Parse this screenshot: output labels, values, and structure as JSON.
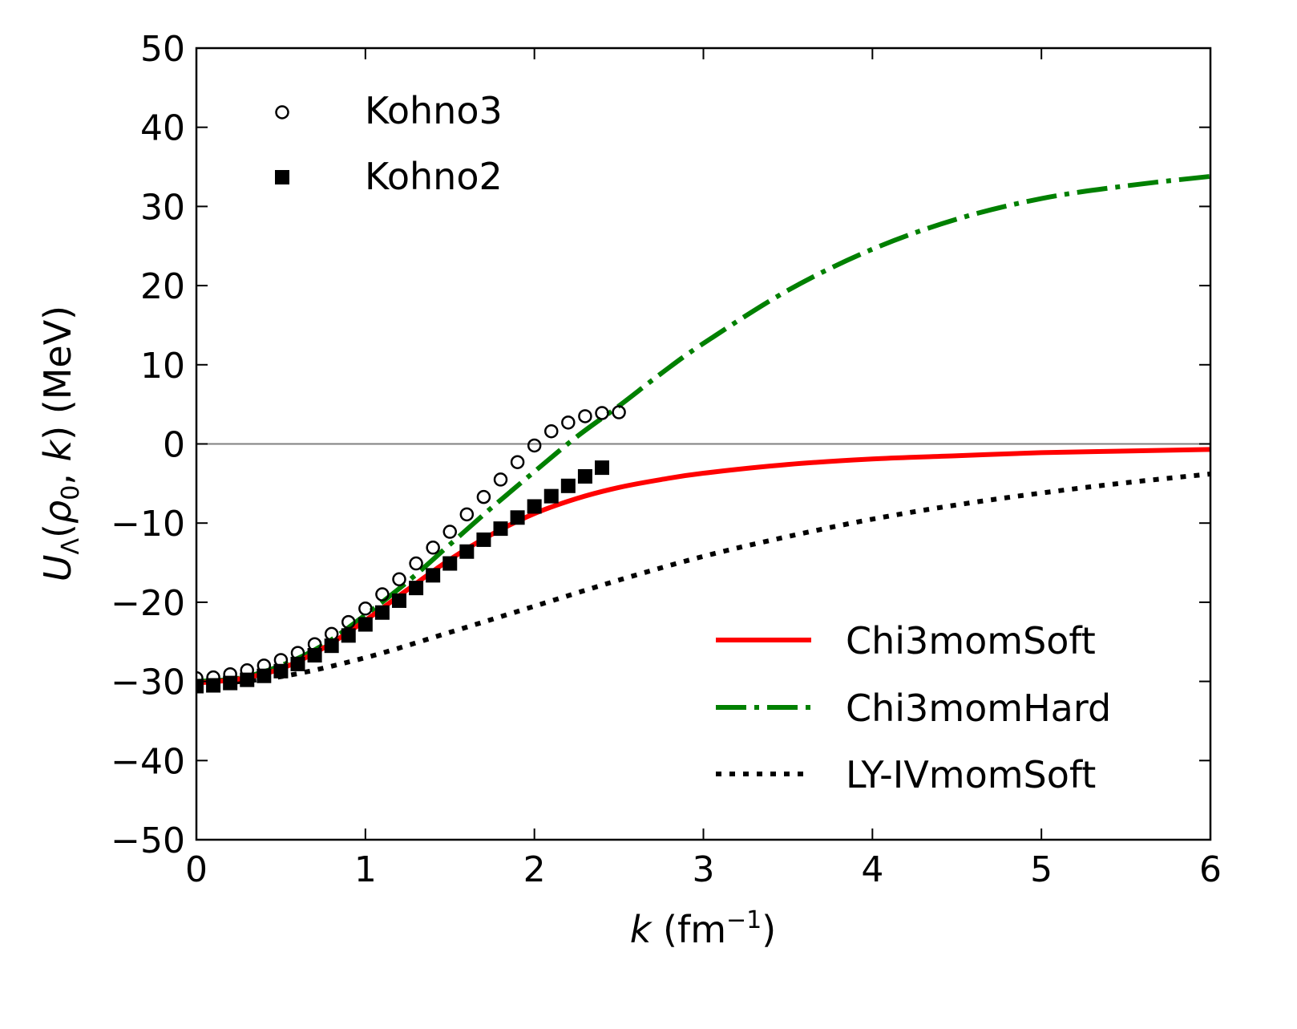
{
  "chart_data": {
    "type": "line",
    "title": "",
    "xlabel": {
      "var": "k",
      "text": " (fm",
      "sup": "−1",
      "close": ")"
    },
    "ylabel": {
      "U": "U",
      "sub": "Λ",
      "open": "(",
      "rho": "ρ",
      "rho_sub": "0",
      "sep": ", ",
      "k": "k",
      "close": ")",
      "unit": " (MeV)"
    },
    "xlim": [
      0,
      6
    ],
    "ylim": [
      -50,
      50
    ],
    "xticks": [
      0,
      1,
      2,
      3,
      4,
      5,
      6
    ],
    "yticks": [
      -50,
      -40,
      -30,
      -20,
      -10,
      0,
      10,
      20,
      30,
      40,
      50
    ],
    "xtick_labels": [
      "0",
      "1",
      "2",
      "3",
      "4",
      "5",
      "6"
    ],
    "ytick_labels": [
      "−50",
      "−40",
      "−30",
      "−20",
      "−10",
      "0",
      "10",
      "20",
      "30",
      "40",
      "50"
    ],
    "hline": 0,
    "grid": false,
    "legend_markers_placement": "top-left",
    "legend_lines_placement": "bottom-right",
    "series": [
      {
        "name": "Kohno3",
        "kind": "markers",
        "marker": "circle-open",
        "color": "#000000",
        "x": [
          0.0,
          0.1,
          0.2,
          0.3,
          0.4,
          0.5,
          0.6,
          0.7,
          0.8,
          0.9,
          1.0,
          1.1,
          1.2,
          1.3,
          1.4,
          1.5,
          1.6,
          1.7,
          1.8,
          1.9,
          2.0,
          2.1,
          2.2,
          2.3,
          2.4,
          2.5
        ],
        "y": [
          -29.6,
          -29.5,
          -29.1,
          -28.6,
          -28.0,
          -27.3,
          -26.4,
          -25.3,
          -24.0,
          -22.5,
          -20.8,
          -19.0,
          -17.1,
          -15.1,
          -13.1,
          -11.1,
          -8.9,
          -6.7,
          -4.5,
          -2.3,
          -0.2,
          1.6,
          2.7,
          3.5,
          3.9,
          4.0
        ]
      },
      {
        "name": "Kohno2",
        "kind": "markers",
        "marker": "square-filled",
        "color": "#000000",
        "x": [
          0.0,
          0.1,
          0.2,
          0.3,
          0.4,
          0.5,
          0.6,
          0.7,
          0.8,
          0.9,
          1.0,
          1.1,
          1.2,
          1.3,
          1.4,
          1.5,
          1.6,
          1.7,
          1.8,
          1.9,
          2.0,
          2.1,
          2.2,
          2.3,
          2.4
        ],
        "y": [
          -30.6,
          -30.5,
          -30.2,
          -29.8,
          -29.3,
          -28.7,
          -27.8,
          -26.7,
          -25.5,
          -24.2,
          -22.8,
          -21.3,
          -19.8,
          -18.2,
          -16.6,
          -15.1,
          -13.6,
          -12.1,
          -10.7,
          -9.3,
          -7.9,
          -6.6,
          -5.3,
          -4.1,
          -3.0
        ]
      },
      {
        "name": "Chi3momSoft",
        "kind": "line",
        "style": "solid",
        "color": "#ff0000",
        "x": [
          0.0,
          0.25,
          0.5,
          0.75,
          1.0,
          1.25,
          1.5,
          1.75,
          2.0,
          2.25,
          2.5,
          2.75,
          3.0,
          3.5,
          4.0,
          4.5,
          5.0,
          5.5,
          6.0
        ],
        "y": [
          -30.2,
          -29.7,
          -28.4,
          -25.8,
          -22.3,
          -18.4,
          -14.6,
          -11.4,
          -8.8,
          -6.9,
          -5.5,
          -4.5,
          -3.7,
          -2.6,
          -1.9,
          -1.5,
          -1.1,
          -0.9,
          -0.7
        ]
      },
      {
        "name": "Chi3momHard",
        "kind": "line",
        "style": "dashdot",
        "color": "#008000",
        "x": [
          0.0,
          0.25,
          0.5,
          0.75,
          1.0,
          1.25,
          1.5,
          1.75,
          2.0,
          2.25,
          2.5,
          2.75,
          3.0,
          3.5,
          4.0,
          4.5,
          5.0,
          5.5,
          6.0
        ],
        "y": [
          -30.0,
          -29.6,
          -28.0,
          -25.4,
          -21.6,
          -17.4,
          -12.7,
          -8.0,
          -3.5,
          0.9,
          4.8,
          8.9,
          12.7,
          19.4,
          24.6,
          28.4,
          31.0,
          32.6,
          33.8
        ]
      },
      {
        "name": "LY-IVmomSoft",
        "kind": "line",
        "style": "dotted",
        "color": "#000000",
        "x": [
          0.0,
          0.5,
          1.0,
          1.5,
          2.0,
          2.5,
          3.0,
          3.5,
          4.0,
          4.5,
          5.0,
          5.5,
          6.0
        ],
        "y": [
          -30.5,
          -29.4,
          -27.0,
          -23.8,
          -20.5,
          -17.2,
          -14.2,
          -11.7,
          -9.5,
          -7.7,
          -6.2,
          -4.9,
          -3.8
        ]
      }
    ]
  }
}
